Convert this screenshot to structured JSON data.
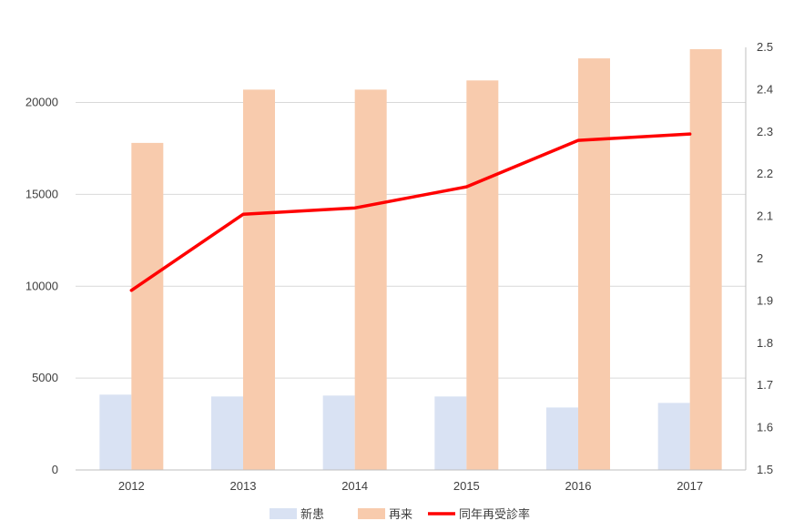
{
  "chart_data": {
    "type": "bar",
    "categories": [
      "2012",
      "2013",
      "2014",
      "2015",
      "2016",
      "2017"
    ],
    "series": [
      {
        "name": "新患",
        "type": "bar",
        "axis": "left",
        "values": [
          4100,
          4000,
          4050,
          4000,
          3400,
          3650
        ]
      },
      {
        "name": "再来",
        "type": "bar",
        "axis": "left",
        "values": [
          17800,
          20700,
          20700,
          21200,
          22400,
          22900
        ]
      },
      {
        "name": "同年再受診率",
        "type": "line",
        "axis": "right",
        "values": [
          1.925,
          2.105,
          2.12,
          2.17,
          2.28,
          2.295
        ]
      }
    ],
    "ylim": [
      0,
      23000
    ],
    "yticks": [
      "0",
      "5000",
      "10000",
      "15000",
      "20000"
    ],
    "y2lim": [
      1.5,
      2.5
    ],
    "y2ticks": [
      "1.5",
      "1.6",
      "1.7",
      "1.8",
      "1.9",
      "2",
      "2.1",
      "2.2",
      "2.3",
      "2.4",
      "2.5"
    ],
    "grid": true,
    "legend_position": "bottom",
    "colors": {
      "新患": "#d9e2f3",
      "再来": "#f8cbad",
      "同年再受診率": "#ff0000",
      "grid": "#d9d9d9",
      "axis": "#bfbfbf"
    }
  }
}
